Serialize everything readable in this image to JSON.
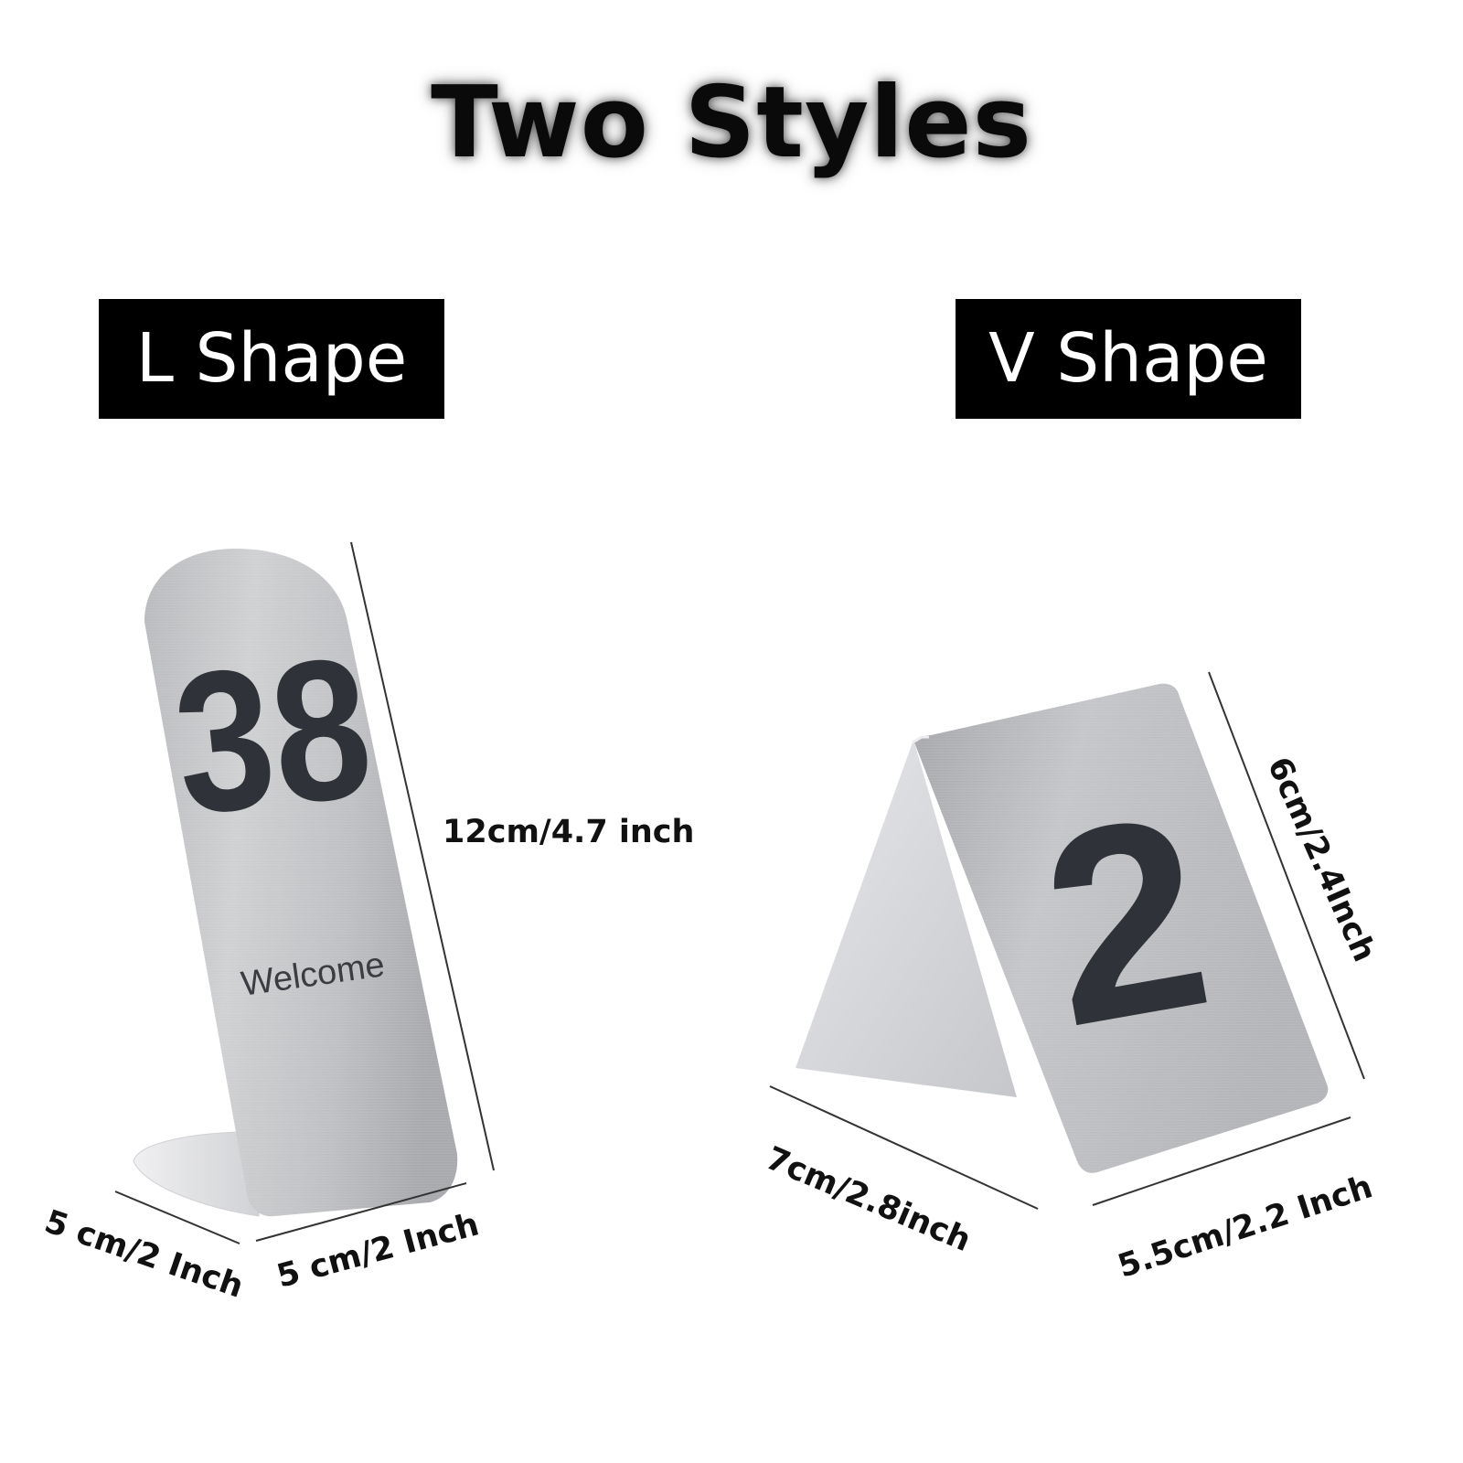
{
  "title": "Two Styles",
  "styles": {
    "l_shape": {
      "label": "L Shape",
      "sign_number": "38",
      "sign_text": "Welcome",
      "height_dim": "12cm/4.7 inch",
      "depth_dim": "5 cm/2 Inch",
      "width_dim": "5 cm/2 Inch"
    },
    "v_shape": {
      "label": "V Shape",
      "sign_number": "2",
      "height_dim": "6cm/2.4Inch",
      "depth_dim": "7cm/2.8inch",
      "width_dim": "5.5cm/2.2 Inch"
    }
  },
  "colors": {
    "badge_bg": "#000000",
    "badge_text": "#ffffff",
    "steel_light": "#c9cacc",
    "steel_dark": "#a9aaad",
    "print": "#2f3238"
  }
}
